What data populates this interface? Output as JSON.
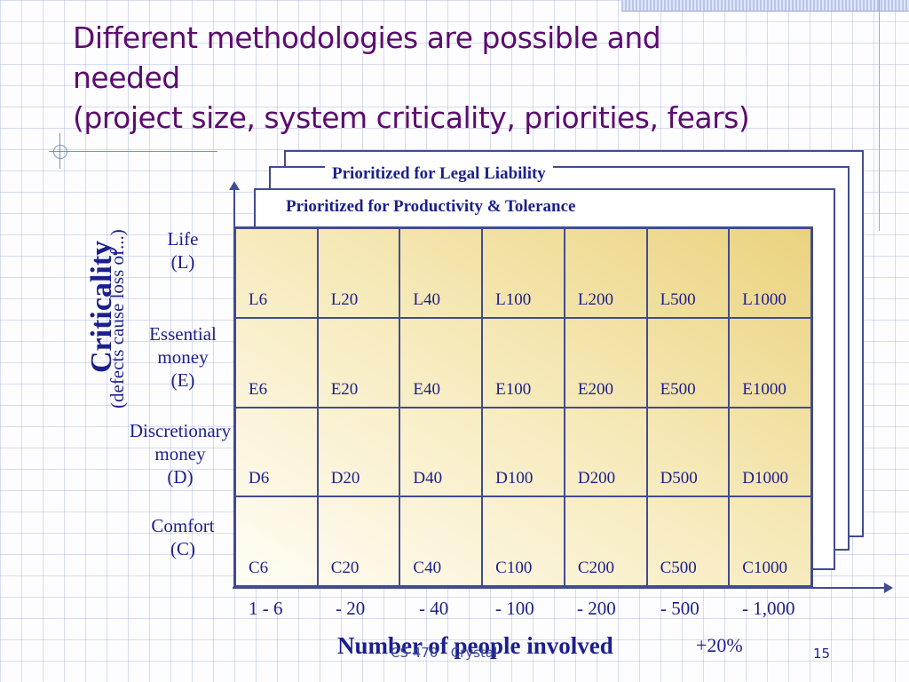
{
  "slide": {
    "title_lines": [
      "Different methodologies are possible and",
      "needed",
      "(project size, system criticality, priorities, fears)"
    ],
    "layer_top_label": "Prioritized for Legal Liability",
    "layer_mid_label": "Prioritized for Productivity & Tolerance",
    "criticality_title": "Criticality",
    "criticality_subtitle": "(defects cause loss of...)",
    "row_labels": [
      "Life\n(L)",
      "Essential\nmoney\n(E)",
      "Discretionary\nmoney\n(D)",
      "Comfort\n(C)"
    ],
    "cells": [
      [
        "L6",
        "L20",
        "L40",
        "L100",
        "L200",
        "L500",
        "L1000"
      ],
      [
        "E6",
        "E20",
        "E40",
        "E100",
        "E200",
        "E500",
        "E1000"
      ],
      [
        "D6",
        "D20",
        "D40",
        "D100",
        "D200",
        "D500",
        "D1000"
      ],
      [
        "C6",
        "C20",
        "C40",
        "C100",
        "C200",
        "C500",
        "C1000"
      ]
    ],
    "column_labels": [
      "1 - 6",
      "- 20",
      "- 40",
      "- 100",
      "- 200",
      "- 500",
      "- 1,000"
    ],
    "x_axis_title": "Number of people involved",
    "x_axis_extra": "+20%",
    "footer_left": "CS 470   Crystal",
    "page_number": "15"
  }
}
